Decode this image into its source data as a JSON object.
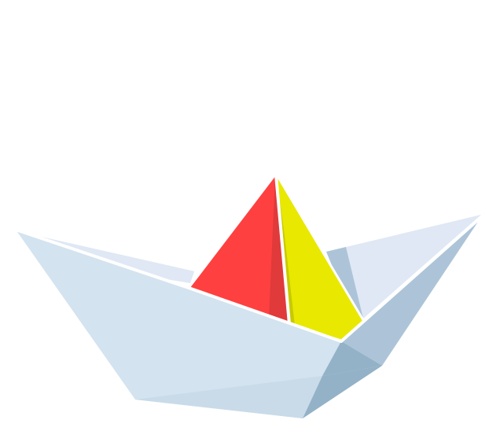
{
  "illustration": {
    "subject": "paper-boat",
    "colors": {
      "background": "#ffffff",
      "hull_front": "#d3e3ef",
      "hull_back": "#dfe8f4",
      "hull_right_light": "#adc4d8",
      "hull_right_dark": "#93b2c7",
      "hull_bottom": "#c9dbe9",
      "sail_red": "#ff4040",
      "sail_red_shadow": "#e03a3a",
      "sail_yellow": "#e8e800",
      "sail_yellow_shadow": "#c9c900",
      "fold_highlight": "#ffffff"
    }
  }
}
